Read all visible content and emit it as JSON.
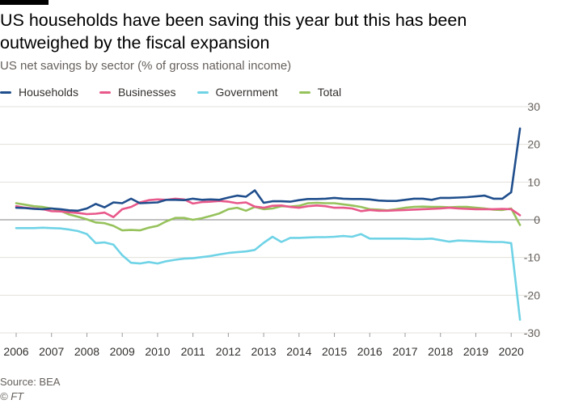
{
  "header": {
    "title": "US households have been saving this year but this has been outweighed by the fiscal expansion",
    "subtitle": "US net savings by sector (% of gross national income)"
  },
  "footer": {
    "source": "Source: BEA",
    "credit": "© FT"
  },
  "colors": {
    "Households": "#1f4e8c",
    "Businesses": "#e8588a",
    "Government": "#6fd3e6",
    "Total": "#96c25b"
  },
  "chart_data": {
    "type": "line",
    "title": "US households have been saving this year but this has been outweighed by the fiscal expansion",
    "subtitle": "US net savings by sector (% of gross national income)",
    "xlabel": "",
    "ylabel": "",
    "xlim": [
      2006,
      2020.75
    ],
    "ylim": [
      -30,
      30
    ],
    "yticks": [
      30,
      20,
      10,
      0,
      -10,
      -20,
      -30
    ],
    "xticks": [
      2006,
      2007,
      2008,
      2009,
      2010,
      2011,
      2012,
      2013,
      2014,
      2015,
      2016,
      2017,
      2018,
      2019,
      2020
    ],
    "grid": true,
    "legend_position": "top-left",
    "x": [
      2006.0,
      2006.25,
      2006.5,
      2006.75,
      2007.0,
      2007.25,
      2007.5,
      2007.75,
      2008.0,
      2008.25,
      2008.5,
      2008.75,
      2009.0,
      2009.25,
      2009.5,
      2009.75,
      2010.0,
      2010.25,
      2010.5,
      2010.75,
      2011.0,
      2011.25,
      2011.5,
      2011.75,
      2012.0,
      2012.25,
      2012.5,
      2012.75,
      2013.0,
      2013.25,
      2013.5,
      2013.75,
      2014.0,
      2014.25,
      2014.5,
      2014.75,
      2015.0,
      2015.25,
      2015.5,
      2015.75,
      2016.0,
      2016.25,
      2016.5,
      2016.75,
      2017.0,
      2017.25,
      2017.5,
      2017.75,
      2018.0,
      2018.25,
      2018.5,
      2018.75,
      2019.0,
      2019.25,
      2019.5,
      2019.75,
      2020.0,
      2020.25
    ],
    "series": [
      {
        "name": "Households",
        "values": [
          3.2,
          3.1,
          2.9,
          2.8,
          3.0,
          2.8,
          2.5,
          2.4,
          3.0,
          4.2,
          3.3,
          4.6,
          4.4,
          5.6,
          4.4,
          4.5,
          4.6,
          5.3,
          5.3,
          5.2,
          5.6,
          5.3,
          5.4,
          5.3,
          5.9,
          6.4,
          6.1,
          7.8,
          4.5,
          4.9,
          4.9,
          4.8,
          5.2,
          5.5,
          5.5,
          5.6,
          5.8,
          5.6,
          5.5,
          5.5,
          5.4,
          5.1,
          5.0,
          5.0,
          5.3,
          5.6,
          5.6,
          5.3,
          5.8,
          5.8,
          5.9,
          6.0,
          6.2,
          6.4,
          5.6,
          5.6,
          7.3,
          24.2
        ]
      },
      {
        "name": "Businesses",
        "values": [
          3.6,
          3.2,
          3.0,
          2.8,
          2.3,
          2.2,
          2.0,
          1.8,
          1.5,
          1.6,
          1.9,
          0.7,
          2.8,
          3.4,
          4.6,
          5.2,
          5.4,
          5.3,
          5.6,
          5.4,
          4.3,
          4.7,
          4.8,
          5.0,
          4.8,
          4.4,
          4.6,
          3.5,
          3.2,
          3.7,
          3.8,
          3.4,
          3.2,
          3.6,
          3.8,
          3.6,
          3.2,
          3.2,
          3.0,
          2.3,
          2.6,
          2.4,
          2.4,
          2.5,
          2.6,
          2.7,
          2.8,
          2.9,
          3.0,
          3.2,
          3.0,
          2.9,
          2.8,
          2.8,
          2.8,
          2.9,
          2.8,
          1.2
        ]
      },
      {
        "name": "Government",
        "values": [
          -2.2,
          -2.2,
          -2.2,
          -2.1,
          -2.2,
          -2.3,
          -2.6,
          -3.0,
          -3.8,
          -6.2,
          -6.0,
          -6.6,
          -9.4,
          -11.4,
          -11.6,
          -11.2,
          -11.6,
          -11.0,
          -10.6,
          -10.3,
          -10.2,
          -9.9,
          -9.6,
          -9.2,
          -8.8,
          -8.6,
          -8.4,
          -8.0,
          -6.1,
          -4.5,
          -5.9,
          -4.8,
          -4.8,
          -4.7,
          -4.6,
          -4.6,
          -4.5,
          -4.3,
          -4.5,
          -3.8,
          -5.0,
          -5.0,
          -5.0,
          -5.0,
          -5.0,
          -5.1,
          -5.1,
          -5.0,
          -5.4,
          -5.8,
          -5.5,
          -5.6,
          -5.7,
          -5.8,
          -5.9,
          -5.9,
          -6.2,
          -26.5
        ]
      },
      {
        "name": "Total",
        "values": [
          4.4,
          4.0,
          3.6,
          3.4,
          3.0,
          2.4,
          1.4,
          0.8,
          0.1,
          -0.7,
          -0.9,
          -1.6,
          -2.8,
          -2.7,
          -2.8,
          -2.1,
          -1.6,
          -0.4,
          0.5,
          0.5,
          0.0,
          0.4,
          1.0,
          1.7,
          2.8,
          3.2,
          2.4,
          3.4,
          2.8,
          3.0,
          3.6,
          3.5,
          3.7,
          4.4,
          4.5,
          4.4,
          4.4,
          4.1,
          3.8,
          3.4,
          2.8,
          2.7,
          2.5,
          2.8,
          3.2,
          3.4,
          3.5,
          3.4,
          3.4,
          3.3,
          3.4,
          3.4,
          3.2,
          3.0,
          2.7,
          2.6,
          3.0,
          -1.4
        ]
      }
    ]
  }
}
